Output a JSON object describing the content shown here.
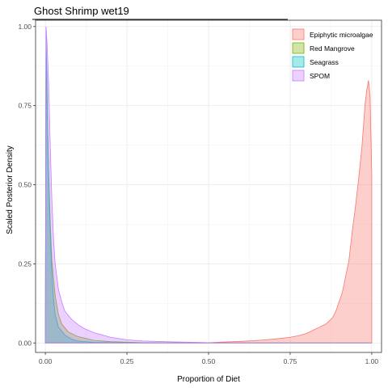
{
  "chart_data": {
    "type": "area",
    "title": "Ghost Shrimp wet19",
    "xlabel": "Proportion of Diet",
    "ylabel": "Scaled Posterior Density",
    "xlim": [
      -0.03,
      1.03
    ],
    "ylim": [
      -0.03,
      1.02
    ],
    "x_ticks": [
      0.0,
      0.25,
      0.5,
      0.75,
      1.0
    ],
    "x_tick_labels": [
      "0.00",
      "0.25",
      "0.50",
      "0.75",
      "1.00"
    ],
    "y_ticks": [
      0.0,
      0.25,
      0.5,
      0.75,
      1.0
    ],
    "y_tick_labels": [
      "0.00",
      "0.25",
      "0.50",
      "0.75",
      "1.00"
    ],
    "grid": true,
    "legend_position": "top-right",
    "series": [
      {
        "name": "Epiphytic microalgae",
        "fill": "#F8766D",
        "points": [
          [
            0.0,
            0.0
          ],
          [
            0.4,
            0.0
          ],
          [
            0.5,
            0.001
          ],
          [
            0.55,
            0.003
          ],
          [
            0.6,
            0.005
          ],
          [
            0.65,
            0.008
          ],
          [
            0.7,
            0.012
          ],
          [
            0.75,
            0.018
          ],
          [
            0.78,
            0.024
          ],
          [
            0.8,
            0.03
          ],
          [
            0.82,
            0.04
          ],
          [
            0.84,
            0.05
          ],
          [
            0.86,
            0.06
          ],
          [
            0.88,
            0.08
          ],
          [
            0.89,
            0.1
          ],
          [
            0.9,
            0.13
          ],
          [
            0.91,
            0.16
          ],
          [
            0.92,
            0.21
          ],
          [
            0.93,
            0.26
          ],
          [
            0.94,
            0.35
          ],
          [
            0.95,
            0.43
          ],
          [
            0.96,
            0.52
          ],
          [
            0.97,
            0.62
          ],
          [
            0.98,
            0.76
          ],
          [
            0.985,
            0.8
          ],
          [
            0.99,
            0.83
          ],
          [
            0.995,
            0.78
          ],
          [
            0.998,
            0.63
          ],
          [
            1.0,
            0.53
          ],
          [
            1.0,
            0.0
          ]
        ]
      },
      {
        "name": "Red Mangrove",
        "fill": "#7CAE00",
        "points": [
          [
            0.0,
            0.0
          ],
          [
            0.002,
            0.92
          ],
          [
            0.005,
            0.78
          ],
          [
            0.01,
            0.55
          ],
          [
            0.015,
            0.38
          ],
          [
            0.02,
            0.26
          ],
          [
            0.03,
            0.15
          ],
          [
            0.04,
            0.09
          ],
          [
            0.05,
            0.06
          ],
          [
            0.07,
            0.035
          ],
          [
            0.1,
            0.02
          ],
          [
            0.15,
            0.008
          ],
          [
            0.2,
            0.004
          ],
          [
            0.3,
            0.001
          ],
          [
            0.5,
            0.0
          ],
          [
            1.0,
            0.0
          ]
        ]
      },
      {
        "name": "Seagrass",
        "fill": "#00BFC4",
        "points": [
          [
            0.0,
            0.0
          ],
          [
            0.002,
            0.97
          ],
          [
            0.005,
            0.83
          ],
          [
            0.008,
            0.62
          ],
          [
            0.012,
            0.45
          ],
          [
            0.016,
            0.32
          ],
          [
            0.02,
            0.22
          ],
          [
            0.025,
            0.14
          ],
          [
            0.03,
            0.09
          ],
          [
            0.04,
            0.05
          ],
          [
            0.06,
            0.025
          ],
          [
            0.08,
            0.012
          ],
          [
            0.1,
            0.006
          ],
          [
            0.15,
            0.002
          ],
          [
            0.3,
            0.0
          ],
          [
            1.0,
            0.0
          ]
        ]
      },
      {
        "name": "SPOM",
        "fill": "#C77CFF",
        "points": [
          [
            0.0,
            0.0
          ],
          [
            0.002,
            1.0
          ],
          [
            0.005,
            0.95
          ],
          [
            0.01,
            0.82
          ],
          [
            0.015,
            0.62
          ],
          [
            0.02,
            0.45
          ],
          [
            0.025,
            0.33
          ],
          [
            0.03,
            0.25
          ],
          [
            0.04,
            0.17
          ],
          [
            0.05,
            0.13
          ],
          [
            0.06,
            0.1
          ],
          [
            0.08,
            0.075
          ],
          [
            0.1,
            0.058
          ],
          [
            0.12,
            0.045
          ],
          [
            0.15,
            0.032
          ],
          [
            0.2,
            0.018
          ],
          [
            0.25,
            0.01
          ],
          [
            0.3,
            0.006
          ],
          [
            0.4,
            0.003
          ],
          [
            0.5,
            0.001
          ],
          [
            0.7,
            0.0
          ],
          [
            1.0,
            0.0
          ]
        ]
      }
    ]
  }
}
